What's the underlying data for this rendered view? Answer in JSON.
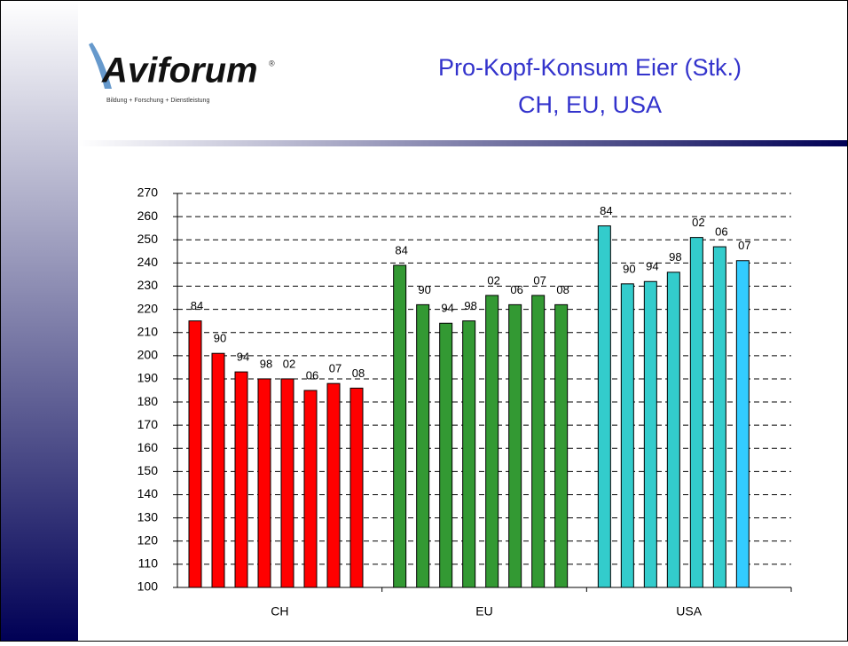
{
  "logo": {
    "name": "Aviforum",
    "mark": "®",
    "tagline": "Bildung + Forschung + Dienstleistung"
  },
  "chart_data": {
    "type": "bar",
    "title": "Pro-Kopf-Konsum Eier (Stk.)",
    "subtitle": "CH, EU, USA",
    "groups": [
      {
        "name": "CH",
        "labels": [
          "84",
          "90",
          "94",
          "98",
          "02",
          "06",
          "07",
          "08"
        ],
        "values": [
          215,
          201,
          193,
          190,
          190,
          185,
          188,
          186
        ],
        "colors": [
          "#ff0000",
          "#ff0000",
          "#ff0000",
          "#ff0000",
          "#ff0000",
          "#ff0000",
          "#ff0000",
          "#ff0000"
        ]
      },
      {
        "name": "EU",
        "labels": [
          "84",
          "90",
          "94",
          "98",
          "02",
          "06",
          "07",
          "08"
        ],
        "values": [
          239,
          222,
          214,
          215,
          226,
          222,
          226,
          222
        ],
        "colors": [
          "#339933",
          "#339933",
          "#339933",
          "#339933",
          "#339933",
          "#339933",
          "#339933",
          "#339933"
        ]
      },
      {
        "name": "USA",
        "labels": [
          "84",
          "90",
          "94",
          "98",
          "02",
          "06",
          "07"
        ],
        "values": [
          256,
          231,
          232,
          236,
          251,
          247,
          241
        ],
        "colors": [
          "#33cccc",
          "#33cccc",
          "#33cccc",
          "#33cccc",
          "#33cccc",
          "#33cccc",
          "#33ccff"
        ]
      }
    ],
    "ylim": [
      100,
      270
    ],
    "yticks": [
      100,
      110,
      120,
      130,
      140,
      150,
      160,
      170,
      180,
      190,
      200,
      210,
      220,
      230,
      240,
      250,
      260,
      270
    ],
    "grid": true
  }
}
